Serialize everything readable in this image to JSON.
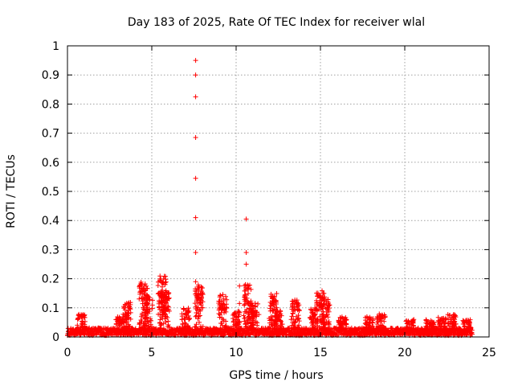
{
  "chart_data": {
    "type": "scatter",
    "title": "Day 183 of 2025, Rate Of TEC Index for receiver wlal",
    "xlabel": "GPS time / hours",
    "ylabel": "ROTI / TECUs",
    "xlim": [
      0,
      25
    ],
    "ylim": [
      0,
      1
    ],
    "xticks": [
      "0",
      "5",
      "10",
      "15",
      "20",
      "25"
    ],
    "yticks": [
      "0",
      "0.1",
      "0.2",
      "0.3",
      "0.4",
      "0.5",
      "0.6",
      "0.7",
      "0.8",
      "0.9",
      "1"
    ],
    "grid": true,
    "marker": "+",
    "color": "#ff0000",
    "data_end_hours": 24.0,
    "base_noise_level": 0.02,
    "outliers": [
      {
        "x": 7.6,
        "y": 0.95
      },
      {
        "x": 7.6,
        "y": 0.9
      },
      {
        "x": 7.6,
        "y": 0.825
      },
      {
        "x": 7.6,
        "y": 0.685
      },
      {
        "x": 7.6,
        "y": 0.545
      },
      {
        "x": 7.6,
        "y": 0.41
      },
      {
        "x": 7.6,
        "y": 0.29
      },
      {
        "x": 7.6,
        "y": 0.19
      },
      {
        "x": 10.6,
        "y": 0.405
      },
      {
        "x": 10.6,
        "y": 0.29
      },
      {
        "x": 10.6,
        "y": 0.25
      },
      {
        "x": 10.2,
        "y": 0.175
      },
      {
        "x": 10.2,
        "y": 0.115
      }
    ],
    "bursts": [
      {
        "x": 0.8,
        "peak": 0.08
      },
      {
        "x": 3.1,
        "peak": 0.07
      },
      {
        "x": 3.5,
        "peak": 0.12
      },
      {
        "x": 4.5,
        "peak": 0.19
      },
      {
        "x": 4.8,
        "peak": 0.14
      },
      {
        "x": 5.6,
        "peak": 0.21
      },
      {
        "x": 5.8,
        "peak": 0.16
      },
      {
        "x": 7.0,
        "peak": 0.1
      },
      {
        "x": 7.8,
        "peak": 0.18
      },
      {
        "x": 9.2,
        "peak": 0.15
      },
      {
        "x": 10.0,
        "peak": 0.09
      },
      {
        "x": 10.7,
        "peak": 0.18
      },
      {
        "x": 11.1,
        "peak": 0.12
      },
      {
        "x": 12.2,
        "peak": 0.15
      },
      {
        "x": 12.5,
        "peak": 0.09
      },
      {
        "x": 13.5,
        "peak": 0.13
      },
      {
        "x": 14.6,
        "peak": 0.1
      },
      {
        "x": 15.0,
        "peak": 0.16
      },
      {
        "x": 15.3,
        "peak": 0.13
      },
      {
        "x": 16.3,
        "peak": 0.07
      },
      {
        "x": 17.9,
        "peak": 0.07
      },
      {
        "x": 18.6,
        "peak": 0.08
      },
      {
        "x": 20.3,
        "peak": 0.06
      },
      {
        "x": 21.5,
        "peak": 0.06
      },
      {
        "x": 22.2,
        "peak": 0.07
      },
      {
        "x": 22.8,
        "peak": 0.08
      },
      {
        "x": 23.7,
        "peak": 0.06
      }
    ]
  }
}
